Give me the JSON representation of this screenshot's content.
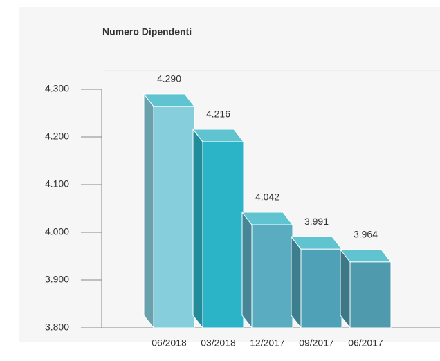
{
  "chart_data": {
    "type": "bar3d",
    "title": "Numero Dipendenti",
    "categories": [
      "06/2018",
      "03/2018",
      "12/2017",
      "09/2017",
      "06/2017"
    ],
    "values": [
      4290,
      4216,
      4042,
      3991,
      3964
    ],
    "value_labels": [
      "4.290",
      "4.216",
      "4.042",
      "3.991",
      "3.964"
    ],
    "colors": [
      "#86cedc",
      "#2bb3c7",
      "#5aacc0",
      "#4ea1b6",
      "#4f9aad"
    ],
    "ylim": [
      3800,
      4300
    ],
    "yticks": [
      {
        "value": 3800,
        "label": "3.800"
      },
      {
        "value": 3900,
        "label": "3.900"
      },
      {
        "value": 4000,
        "label": "4.000"
      },
      {
        "value": 4100,
        "label": "4.100"
      },
      {
        "value": 4200,
        "label": "4.200"
      },
      {
        "value": 4300,
        "label": "4.300"
      }
    ]
  }
}
